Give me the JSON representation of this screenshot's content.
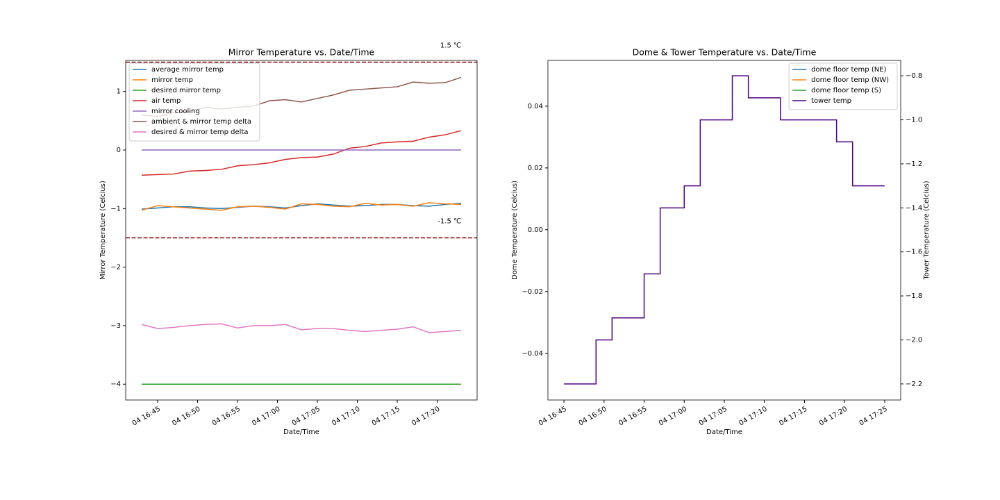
{
  "chart_data": [
    {
      "type": "line",
      "title": "Mirror Temperature vs. Date/Time",
      "xlabel": "Date/Time",
      "ylabel": "Mirror Temperature (Celcius)",
      "x": [
        "04 16:43",
        "04 16:45",
        "04 16:47",
        "04 16:49",
        "04 16:51",
        "04 16:53",
        "04 16:55",
        "04 16:57",
        "04 16:59",
        "04 17:01",
        "04 17:03",
        "04 17:05",
        "04 17:07",
        "04 17:09",
        "04 17:11",
        "04 17:13",
        "04 17:15",
        "04 17:17",
        "04 17:19",
        "04 17:21",
        "04 17:23"
      ],
      "xlim": [
        "04 16:41",
        "04 17:25"
      ],
      "xticks": [
        "04 16:45",
        "04 16:50",
        "04 16:55",
        "04 17:00",
        "04 17:05",
        "04 17:10",
        "04 17:15",
        "04 17:20"
      ],
      "ylim": [
        -4.27,
        1.53
      ],
      "yticks": [
        {
          "value": -4,
          "label": "−4"
        },
        {
          "value": -3,
          "label": "−3"
        },
        {
          "value": -2,
          "label": "−2"
        },
        {
          "value": -1,
          "label": "−1"
        },
        0,
        1
      ],
      "hlines": [
        {
          "value": 1.5,
          "label": "1.5 ℃",
          "color": "#8b0000"
        },
        {
          "value": -1.5,
          "label": "-1.5 ℃",
          "color": "#8b0000"
        }
      ],
      "legend": "upper left",
      "series": [
        {
          "name": "average mirror temp",
          "color": "#1f77b4",
          "values": [
            -1.01,
            -0.99,
            -0.97,
            -0.97,
            -0.99,
            -1.0,
            -0.98,
            -0.96,
            -0.97,
            -0.99,
            -0.95,
            -0.92,
            -0.94,
            -0.96,
            -0.95,
            -0.93,
            -0.93,
            -0.95,
            -0.96,
            -0.93,
            -0.91
          ]
        },
        {
          "name": "mirror temp",
          "color": "#ff7f0e",
          "values": [
            -1.03,
            -0.95,
            -0.97,
            -0.99,
            -1.01,
            -1.03,
            -0.97,
            -0.96,
            -0.98,
            -1.01,
            -0.92,
            -0.93,
            -0.96,
            -0.97,
            -0.91,
            -0.94,
            -0.93,
            -0.96,
            -0.9,
            -0.92,
            -0.93
          ]
        },
        {
          "name": "desired mirror temp",
          "color": "#2ca02c",
          "values": [
            -4,
            -4,
            -4,
            -4,
            -4,
            -4,
            -4,
            -4,
            -4,
            -4,
            -4,
            -4,
            -4,
            -4,
            -4,
            -4,
            -4,
            -4,
            -4,
            -4,
            -4
          ]
        },
        {
          "name": "air temp",
          "color": "#d62728",
          "values": [
            -0.43,
            -0.42,
            -0.41,
            -0.36,
            -0.35,
            -0.33,
            -0.27,
            -0.25,
            -0.22,
            -0.16,
            -0.13,
            -0.12,
            -0.07,
            0.03,
            0.06,
            0.12,
            0.14,
            0.15,
            0.22,
            0.26,
            0.33
          ]
        },
        {
          "name": "mirror cooling",
          "color": "#9467bd",
          "values": [
            0,
            0,
            0,
            0,
            0,
            0,
            0,
            0,
            0,
            0,
            0,
            0,
            0,
            0,
            0,
            0,
            0,
            0,
            0,
            0,
            0
          ]
        },
        {
          "name": "ambient & mirror temp delta",
          "color": "#8c564b",
          "values": [
            0.6,
            0.57,
            0.64,
            0.66,
            0.73,
            0.7,
            0.73,
            0.75,
            0.84,
            0.86,
            0.82,
            0.88,
            0.94,
            1.02,
            1.04,
            1.06,
            1.08,
            1.16,
            1.14,
            1.15,
            1.24
          ]
        },
        {
          "name": "desired & mirror temp delta",
          "color": "#e377c2",
          "values": [
            -2.98,
            -3.05,
            -3.03,
            -3.0,
            -2.98,
            -2.97,
            -3.04,
            -3.0,
            -3.0,
            -2.98,
            -3.07,
            -3.05,
            -3.05,
            -3.08,
            -3.1,
            -3.08,
            -3.06,
            -3.02,
            -3.12,
            -3.1,
            -3.08
          ]
        }
      ]
    },
    {
      "type": "line",
      "title": "Dome & Tower Temperature vs. Date/Time",
      "xlabel": "Date/Time",
      "ylabel": "Dome Temperature (Celcius)",
      "y2label": "Tower Temperature (Celcius)",
      "x": [
        "04 16:45",
        "04 16:49",
        "04 16:51",
        "04 16:55",
        "04 16:57",
        "04 17:00",
        "04 17:02",
        "04 17:06",
        "04 17:08",
        "04 17:12",
        "04 17:19",
        "04 17:21",
        "04 17:25"
      ],
      "xlim": [
        "04 16:43",
        "04 17:27"
      ],
      "xticks": [
        "04 16:45",
        "04 16:50",
        "04 16:55",
        "04 17:00",
        "04 17:05",
        "04 17:10",
        "04 17:15",
        "04 17:20",
        "04 17:25"
      ],
      "ylim": [
        -0.0551,
        0.0548
      ],
      "yticks": [
        {
          "value": -0.04,
          "label": "−0.04"
        },
        {
          "value": -0.02,
          "label": "−0.02"
        },
        {
          "value": 0,
          "label": "0.00"
        },
        0.02,
        0.04
      ],
      "y2lim": [
        -2.273,
        -0.73
      ],
      "y2ticks": [
        {
          "value": -2.2,
          "label": "−2.2"
        },
        {
          "value": -2.0,
          "label": "−2.0"
        },
        {
          "value": -1.8,
          "label": "−1.8"
        },
        {
          "value": -1.6,
          "label": "−1.6"
        },
        {
          "value": -1.4,
          "label": "−1.4"
        },
        {
          "value": -1.2,
          "label": "−1.2"
        },
        {
          "value": -1.0,
          "label": "−1.0"
        },
        {
          "value": -0.8,
          "label": "−0.8"
        }
      ],
      "legend": "upper right",
      "series": [
        {
          "name": "dome floor temp (NE)",
          "color": "#1f77b4",
          "values": [
            null,
            null,
            null,
            null,
            null,
            null,
            null,
            null,
            null,
            null,
            null,
            null,
            null
          ]
        },
        {
          "name": "dome floor temp (NW)",
          "color": "#ff7f0e",
          "values": [
            null,
            null,
            null,
            null,
            null,
            null,
            null,
            null,
            null,
            null,
            null,
            null,
            null
          ]
        },
        {
          "name": "dome floor temp (S)",
          "color": "#2ca02c",
          "values": [
            null,
            null,
            null,
            null,
            null,
            null,
            null,
            null,
            null,
            null,
            null,
            null,
            null
          ]
        },
        {
          "name": "tower temp",
          "color": "#4b0082",
          "axis": "y2",
          "drawstyle": "steps-post",
          "values": [
            -2.2,
            -2.0,
            -1.9,
            -1.7,
            -1.4,
            -1.3,
            -1.0,
            -0.8,
            -0.9,
            -1.0,
            -1.1,
            -1.3,
            -1.3
          ]
        }
      ]
    }
  ]
}
